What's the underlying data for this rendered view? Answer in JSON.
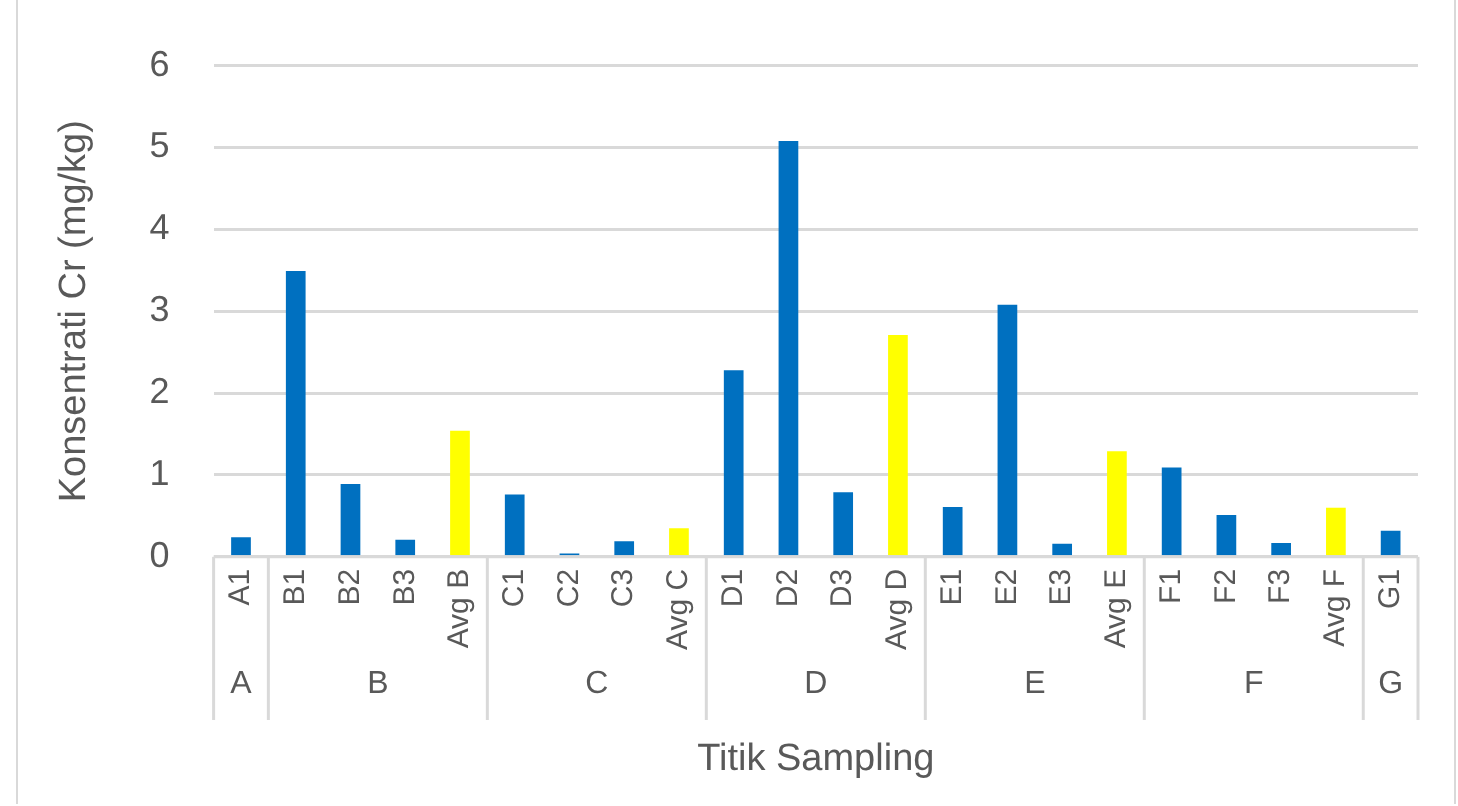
{
  "chart_data": {
    "type": "bar",
    "xlabel": "Titik Sampling",
    "ylabel": "Konsentrati Cr (mg/kg)",
    "categories": [
      "A1",
      "B1",
      "B2",
      "B3",
      "Avg B",
      "C1",
      "C2",
      "C3",
      "Avg C",
      "D1",
      "D2",
      "D3",
      "Avg D",
      "E1",
      "E2",
      "E3",
      "Avg E",
      "F1",
      "F2",
      "F3",
      "Avg F",
      "G1"
    ],
    "values": [
      0.24,
      3.49,
      0.89,
      0.21,
      1.54,
      0.76,
      0.04,
      0.19,
      0.35,
      2.28,
      5.08,
      0.79,
      2.71,
      0.61,
      3.08,
      0.16,
      1.29,
      1.09,
      0.51,
      0.17,
      0.6,
      0.32
    ],
    "colors": [
      "#0070c0",
      "#0070c0",
      "#0070c0",
      "#0070c0",
      "#ffff00",
      "#0070c0",
      "#0070c0",
      "#0070c0",
      "#ffff00",
      "#0070c0",
      "#0070c0",
      "#0070c0",
      "#ffff00",
      "#0070c0",
      "#0070c0",
      "#0070c0",
      "#ffff00",
      "#0070c0",
      "#0070c0",
      "#0070c0",
      "#ffff00",
      "#0070c0"
    ],
    "ylim": [
      0,
      6
    ],
    "yticks": [
      0,
      1,
      2,
      3,
      4,
      5,
      6
    ],
    "grid": "y",
    "legend": false,
    "annotations": [
      "A",
      "B",
      "C",
      "D",
      "E",
      "F",
      "G"
    ]
  }
}
